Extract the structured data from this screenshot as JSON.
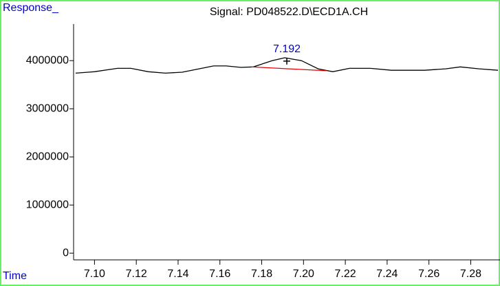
{
  "chart_data": {
    "type": "line",
    "title": "Signal: PD048522.D\\ECD1A.CH",
    "ylabel": "Response_",
    "xlabel": "Time",
    "xlim": [
      7.09,
      7.294
    ],
    "ylim": [
      -140000,
      4760000
    ],
    "xticks": [
      {
        "value": 7.1,
        "label": "7.10"
      },
      7.12,
      7.14,
      7.16,
      7.18,
      {
        "value": 7.2,
        "label": "7.20"
      },
      7.22,
      7.24,
      7.26,
      7.28
    ],
    "yticks": [
      0,
      1000000,
      2000000,
      3000000,
      4000000
    ],
    "x": [
      7.091,
      7.1,
      7.111,
      7.1174,
      7.1257,
      7.134,
      7.142,
      7.15,
      7.157,
      7.163,
      7.17,
      7.176,
      7.185,
      7.191,
      7.199,
      7.207,
      7.214,
      7.222,
      7.232,
      7.242,
      7.258,
      7.268,
      7.275,
      7.284,
      7.293
    ],
    "series": [
      {
        "color": "#000000",
        "values": [
          3740000,
          3770000,
          3840000,
          3840000,
          3770000,
          3740000,
          3760000,
          3830000,
          3890000,
          3890000,
          3860000,
          3870000,
          4000000,
          4060000,
          4000000,
          3830000,
          3770000,
          3840000,
          3840000,
          3800000,
          3800000,
          3830000,
          3870000,
          3830000,
          3800000
        ]
      }
    ],
    "baseline": {
      "color": "#e00000",
      "x": [
        7.175,
        7.211
      ],
      "values": [
        3870000,
        3790000
      ]
    },
    "peak": {
      "label": "7.192",
      "x": 7.192,
      "y": 3990000,
      "color": "#0000cc"
    }
  }
}
